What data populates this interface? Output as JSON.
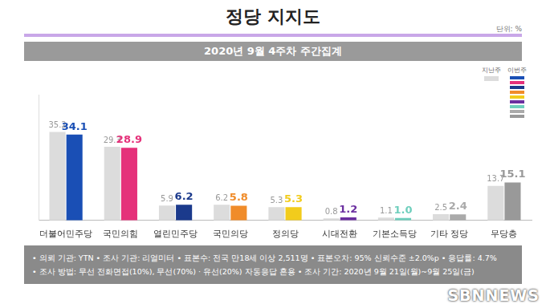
{
  "chart_data": {
    "type": "bar",
    "title": "정당 지지도",
    "subtitle": "2020년 9월 4주차 주간집계",
    "annotations": [
      "단위: %"
    ],
    "categories": [
      "더불어민주당",
      "국민의힘",
      "열린민주당",
      "국민의당",
      "정의당",
      "시대전환",
      "기본소득당",
      "기타 정당",
      "무당층"
    ],
    "series": [
      {
        "name": "지난주",
        "color": "#dcdcdc",
        "values": [
          35.2,
          29.3,
          5.9,
          6.2,
          5.3,
          0.8,
          1.1,
          2.5,
          13.7
        ],
        "value_labels": [
          "35.2",
          "29.3",
          "5.9",
          "6.2",
          "5.3",
          "0.8",
          "1.1",
          "2.5",
          "13.7"
        ]
      },
      {
        "name": "이번주",
        "colors": [
          "#1a4fb5",
          "#e5317a",
          "#1b3a8c",
          "#f08c2a",
          "#f2cc1c",
          "#6b2fa0",
          "#6fcfbd",
          "#aaaaaa",
          "#999999"
        ],
        "values": [
          34.1,
          28.9,
          6.2,
          5.8,
          5.3,
          1.2,
          1.0,
          2.4,
          15.1
        ],
        "value_labels": [
          "34.1",
          "28.9",
          "6.2",
          "5.8",
          "5.3",
          "1.2",
          "1.0",
          "2.4",
          "15.1"
        ]
      }
    ],
    "ylim": [
      0,
      50
    ],
    "grid": false,
    "legend": "top-right",
    "data_labels": true,
    "tick_labels": "x",
    "notes": [
      "• 의뢰 기관: YTN  • 조사 기관: 리얼미터  • 표본수: 전국 만18세 이상 2,511명  • 표본오차: 95% 신뢰수준 ±2.0%p  • 응답률: 4.7%",
      "• 조사 방법: 무선 전화면접(10%), 무선(70%) · 유선(20%) 자동응답 혼용  • 조사 기간: 2020년 9월 21일(월)~9월 25일(금)"
    ],
    "watermark": "SBNNEWS"
  }
}
